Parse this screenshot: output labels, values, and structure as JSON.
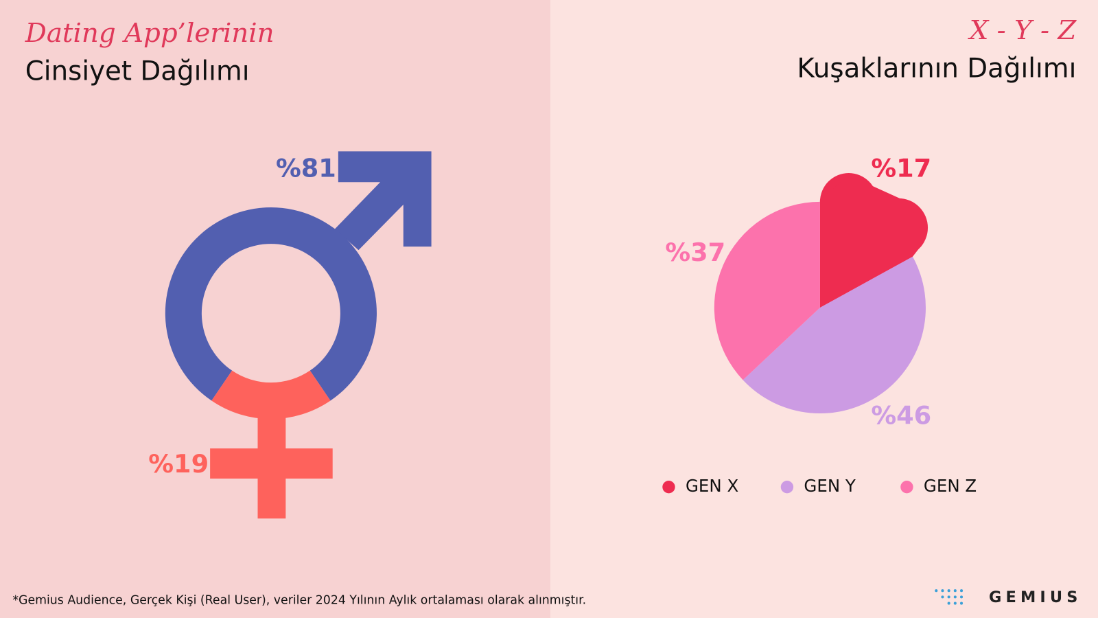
{
  "chart_data": [
    {
      "type": "donut",
      "title": "Dating App’lerinin",
      "subtitle": "Cinsiyet Dağılımı",
      "values": [
        81,
        19
      ],
      "value_labels": [
        "%81",
        "%19"
      ],
      "colors": [
        "#525fb0",
        "#fe625c"
      ]
    },
    {
      "type": "pie",
      "title": "X - Y - Z",
      "subtitle": "Kuşaklarının Dağılımı",
      "categories": [
        "GEN X",
        "GEN Y",
        "GEN Z"
      ],
      "values": [
        17,
        46,
        37
      ],
      "value_labels": [
        "%17",
        "%46",
        "%37"
      ],
      "colors": [
        "#ee2c50",
        "#cc9be3",
        "#fc72ac"
      ],
      "legend": "bottom"
    }
  ],
  "footer": {
    "note": "*Gemius Audience, Gerçek Kişi (Real User), veriler 2024 Yılının Aylık ortalaması olarak alınmıştır.",
    "logo": "GEMIUS"
  }
}
